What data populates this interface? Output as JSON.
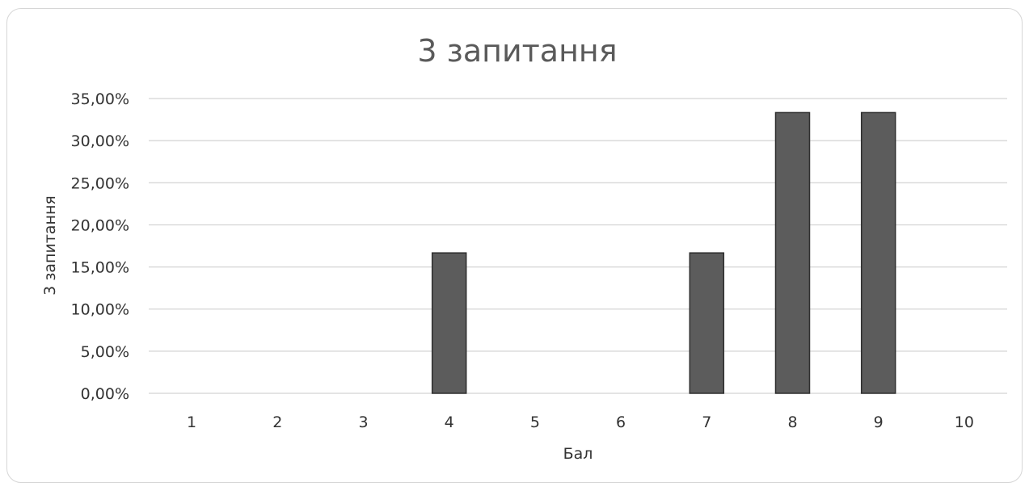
{
  "chart_data": {
    "type": "bar",
    "title": "3 запитання",
    "xlabel": "Бал",
    "ylabel": "3 запитання",
    "categories": [
      "1",
      "2",
      "3",
      "4",
      "5",
      "6",
      "7",
      "8",
      "9",
      "10"
    ],
    "values": [
      0,
      0,
      0,
      16.67,
      0,
      0,
      16.67,
      33.33,
      33.33,
      0
    ],
    "ylim": [
      0,
      35
    ],
    "yticks": [
      0,
      5,
      10,
      15,
      20,
      25,
      30,
      35
    ],
    "ytick_labels": [
      "0,00%",
      "5,00%",
      "10,00%",
      "15,00%",
      "20,00%",
      "25,00%",
      "30,00%",
      "35,00%"
    ],
    "grid": true,
    "legend": "none",
    "colors": {
      "bar": "#5c5c5c",
      "bar_border": "#2e2e2e",
      "grid": "#c8c8c8"
    }
  }
}
